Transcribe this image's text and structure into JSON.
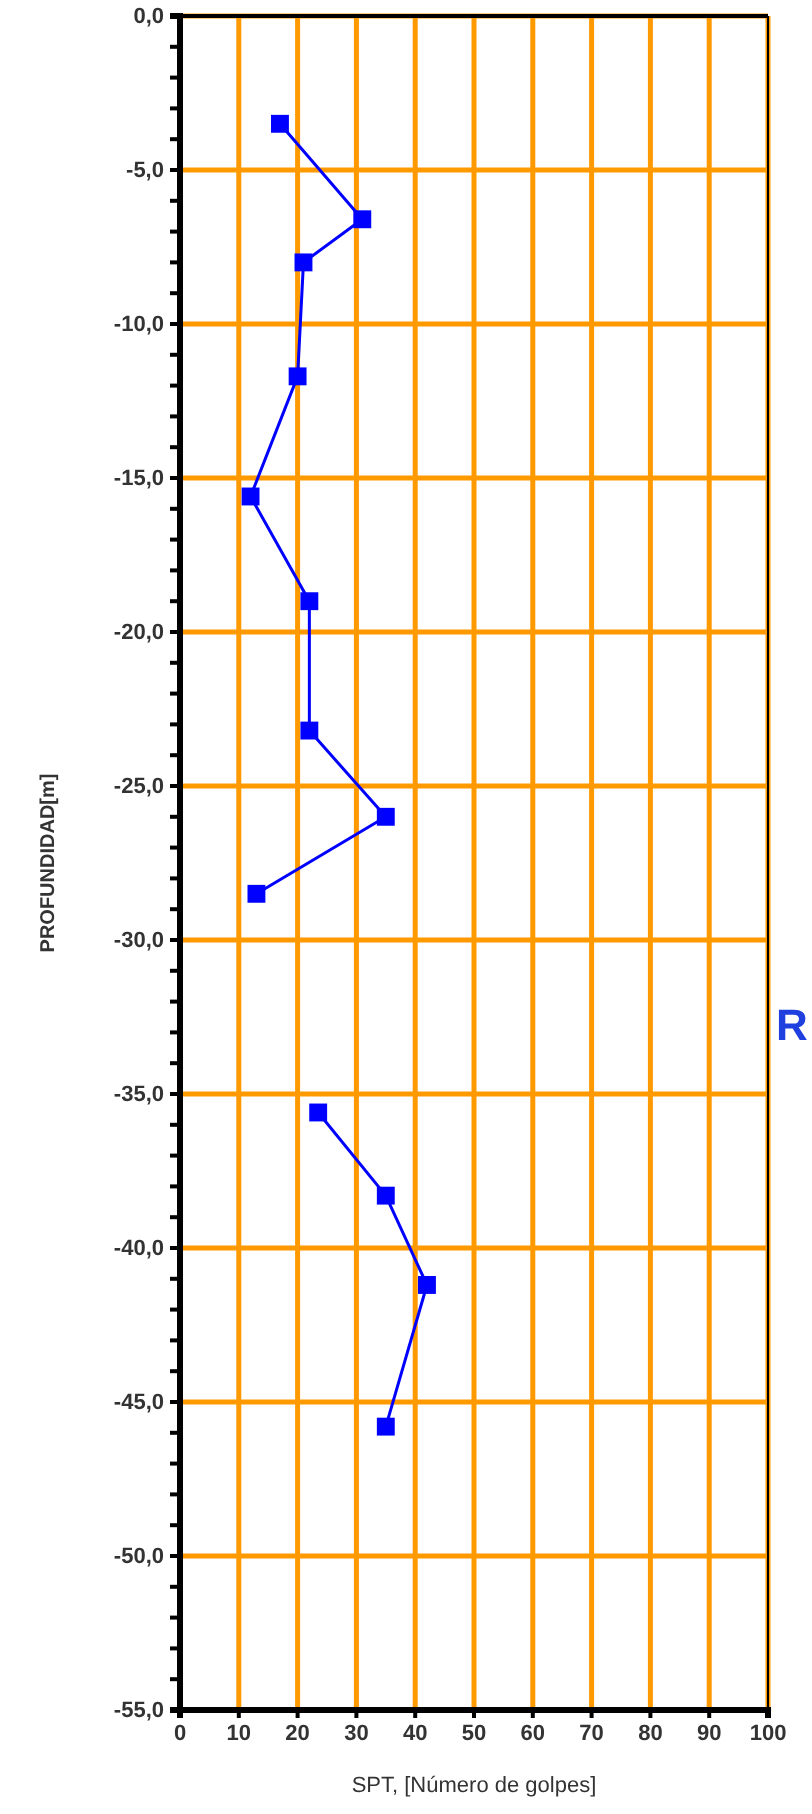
{
  "chart_data": {
    "type": "line",
    "xlabel": "SPT, [Número de golpes]",
    "ylabel": "PROFUNDIDAD[m]",
    "xlim": [
      0,
      100
    ],
    "xticks": [
      0,
      10,
      20,
      30,
      40,
      50,
      60,
      70,
      80,
      90,
      100
    ],
    "ylim": [
      -55,
      0
    ],
    "yticks": [
      {
        "value": 0,
        "label": "0,0"
      },
      {
        "value": -1,
        "label": null
      },
      {
        "value": -2,
        "label": null
      },
      {
        "value": -3,
        "label": null
      },
      {
        "value": -4,
        "label": null
      },
      {
        "value": -5,
        "label": "-5,0"
      },
      {
        "value": -6,
        "label": null
      },
      {
        "value": -7,
        "label": null
      },
      {
        "value": -8,
        "label": null
      },
      {
        "value": -9,
        "label": null
      },
      {
        "value": -10,
        "label": "-10,0"
      },
      {
        "value": -11,
        "label": null
      },
      {
        "value": -12,
        "label": null
      },
      {
        "value": -13,
        "label": null
      },
      {
        "value": -14,
        "label": null
      },
      {
        "value": -15,
        "label": "-15,0"
      },
      {
        "value": -16,
        "label": null
      },
      {
        "value": -17,
        "label": null
      },
      {
        "value": -18,
        "label": null
      },
      {
        "value": -19,
        "label": null
      },
      {
        "value": -20,
        "label": "-20,0"
      },
      {
        "value": -21,
        "label": null
      },
      {
        "value": -22,
        "label": null
      },
      {
        "value": -23,
        "label": null
      },
      {
        "value": -24,
        "label": null
      },
      {
        "value": -25,
        "label": "-25,0"
      },
      {
        "value": -26,
        "label": null
      },
      {
        "value": -27,
        "label": null
      },
      {
        "value": -28,
        "label": null
      },
      {
        "value": -29,
        "label": null
      },
      {
        "value": -30,
        "label": "-30,0"
      },
      {
        "value": -31,
        "label": null
      },
      {
        "value": -32,
        "label": null
      },
      {
        "value": -33,
        "label": null
      },
      {
        "value": -34,
        "label": null
      },
      {
        "value": -35,
        "label": "-35,0"
      },
      {
        "value": -36,
        "label": null
      },
      {
        "value": -37,
        "label": null
      },
      {
        "value": -38,
        "label": null
      },
      {
        "value": -39,
        "label": null
      },
      {
        "value": -40,
        "label": "-40,0"
      },
      {
        "value": -41,
        "label": null
      },
      {
        "value": -42,
        "label": null
      },
      {
        "value": -43,
        "label": null
      },
      {
        "value": -44,
        "label": null
      },
      {
        "value": -45,
        "label": "-45,0"
      },
      {
        "value": -46,
        "label": null
      },
      {
        "value": -47,
        "label": null
      },
      {
        "value": -48,
        "label": null
      },
      {
        "value": -49,
        "label": null
      },
      {
        "value": -50,
        "label": "-50,0"
      },
      {
        "value": -51,
        "label": null
      },
      {
        "value": -52,
        "label": null
      },
      {
        "value": -53,
        "label": null
      },
      {
        "value": -54,
        "label": null
      },
      {
        "value": -55,
        "label": "-55,0"
      }
    ],
    "grid": true,
    "marker": "square",
    "line_style": "solid",
    "series": [
      {
        "color": "#0000ff",
        "x": [
          17,
          31,
          21,
          20,
          12,
          22,
          22,
          35,
          13,
          null,
          23.5,
          35,
          42,
          35
        ],
        "values": [
          -3.5,
          -6.6,
          -8,
          -11.7,
          -15.6,
          -19,
          -23.2,
          -26,
          -28.5,
          null,
          -35.6,
          -38.3,
          -41.2,
          -45.8
        ]
      }
    ],
    "annotations": [
      "R"
    ]
  }
}
